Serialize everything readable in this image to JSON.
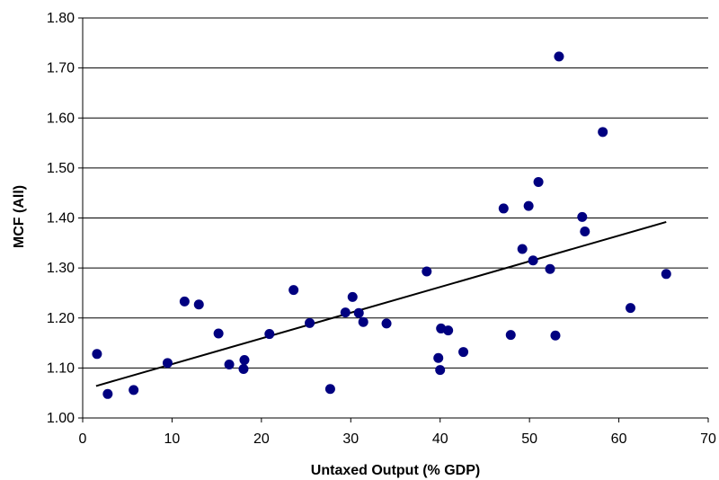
{
  "chart_data": {
    "type": "scatter",
    "title": "",
    "xlabel": "Untaxed Output (% GDP)",
    "ylabel": "MCF (All)",
    "xlim": [
      0,
      70
    ],
    "ylim": [
      1.0,
      1.8
    ],
    "x_ticks": [
      "0",
      "10",
      "20",
      "30",
      "40",
      "50",
      "60",
      "70"
    ],
    "y_ticks": [
      "1.00",
      "1.10",
      "1.20",
      "1.30",
      "1.40",
      "1.50",
      "1.60",
      "1.70",
      "1.80"
    ],
    "grid": "horizontal",
    "legend": "none",
    "marker_color": "#000080",
    "trendline": {
      "x": [
        1.5,
        65.3
      ],
      "y": [
        1.064,
        1.392
      ]
    },
    "points": [
      {
        "x": 1.6,
        "y": 1.128
      },
      {
        "x": 2.8,
        "y": 1.048
      },
      {
        "x": 5.7,
        "y": 1.056
      },
      {
        "x": 9.5,
        "y": 1.11
      },
      {
        "x": 11.4,
        "y": 1.233
      },
      {
        "x": 13.0,
        "y": 1.227
      },
      {
        "x": 15.2,
        "y": 1.169
      },
      {
        "x": 16.4,
        "y": 1.107
      },
      {
        "x": 18.1,
        "y": 1.116
      },
      {
        "x": 18.0,
        "y": 1.098
      },
      {
        "x": 20.9,
        "y": 1.168
      },
      {
        "x": 23.6,
        "y": 1.256
      },
      {
        "x": 25.4,
        "y": 1.19
      },
      {
        "x": 27.7,
        "y": 1.058
      },
      {
        "x": 29.4,
        "y": 1.211
      },
      {
        "x": 30.2,
        "y": 1.242
      },
      {
        "x": 30.9,
        "y": 1.21
      },
      {
        "x": 31.4,
        "y": 1.192
      },
      {
        "x": 34.0,
        "y": 1.189
      },
      {
        "x": 38.5,
        "y": 1.293
      },
      {
        "x": 39.8,
        "y": 1.12
      },
      {
        "x": 40.0,
        "y": 1.096
      },
      {
        "x": 40.1,
        "y": 1.179
      },
      {
        "x": 40.9,
        "y": 1.175
      },
      {
        "x": 42.6,
        "y": 1.132
      },
      {
        "x": 47.1,
        "y": 1.419
      },
      {
        "x": 47.9,
        "y": 1.166
      },
      {
        "x": 49.2,
        "y": 1.338
      },
      {
        "x": 49.9,
        "y": 1.424
      },
      {
        "x": 50.4,
        "y": 1.315
      },
      {
        "x": 51.0,
        "y": 1.472
      },
      {
        "x": 52.3,
        "y": 1.298
      },
      {
        "x": 52.9,
        "y": 1.165
      },
      {
        "x": 53.3,
        "y": 1.723
      },
      {
        "x": 55.9,
        "y": 1.402
      },
      {
        "x": 56.2,
        "y": 1.373
      },
      {
        "x": 58.2,
        "y": 1.572
      },
      {
        "x": 61.3,
        "y": 1.22
      },
      {
        "x": 65.3,
        "y": 1.288
      }
    ]
  }
}
